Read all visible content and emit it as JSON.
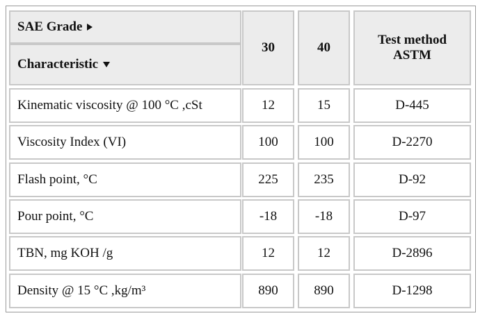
{
  "header": {
    "sae_grade": "SAE Grade",
    "characteristic": "Characteristic",
    "grades": [
      "30",
      "40"
    ],
    "test_method": "Test method ASTM"
  },
  "table": {
    "rows": [
      [
        "Kinematic viscosity @ 100 °C ,cSt",
        "12",
        "15",
        "D-445"
      ],
      [
        "Viscosity Index (VI)",
        "100",
        "100",
        "D-2270"
      ],
      [
        "Flash point, °C",
        "225",
        "235",
        "D-92"
      ],
      [
        "Pour point, °C",
        "-18",
        "-18",
        "D-97"
      ],
      [
        "TBN, mg KOH /g",
        "12",
        "12",
        "D-2896"
      ],
      [
        "Density @ 15 °C ,kg/m³",
        "890",
        "890",
        "D-1298"
      ]
    ]
  }
}
